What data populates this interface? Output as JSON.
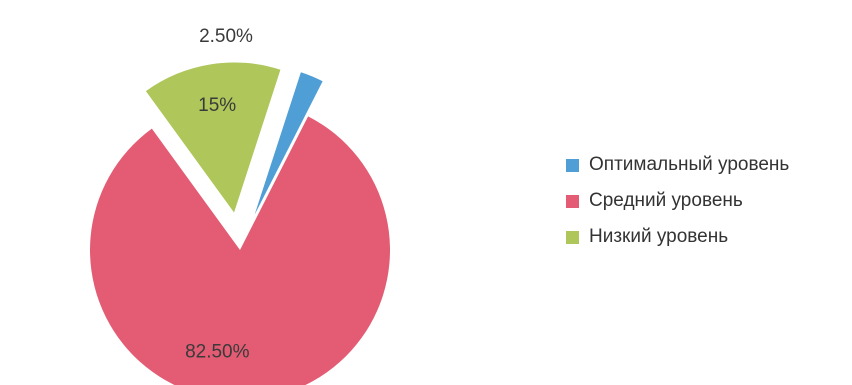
{
  "chart_data": {
    "type": "pie",
    "title": "",
    "slices": [
      {
        "name": "Оптимальный уровень",
        "value": 2.5,
        "label": "2.50%",
        "color": "#4f9fd6",
        "exploded": true
      },
      {
        "name": "Средний уровень",
        "value": 82.5,
        "label": "82.50%",
        "color": "#e35c74",
        "exploded": false
      },
      {
        "name": "Низкий уровень",
        "value": 15,
        "label": "15%",
        "color": "#aec65a",
        "exploded": true
      }
    ],
    "legend": {
      "position": "right"
    }
  }
}
